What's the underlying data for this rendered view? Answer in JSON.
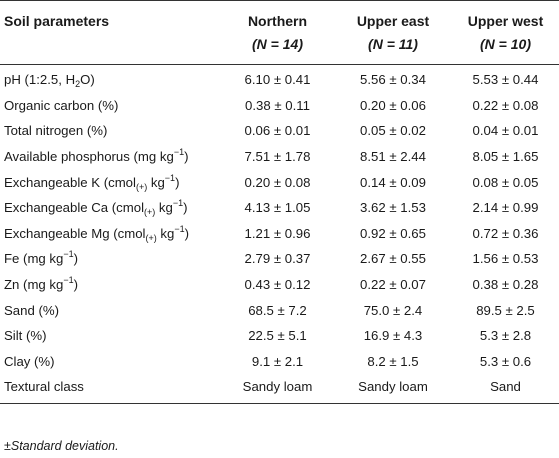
{
  "table": {
    "headers": {
      "param": "Soil parameters",
      "northern": "Northern",
      "northern_n": "(N = 14)",
      "upper_east": "Upper east",
      "upper_east_n": "(N = 11)",
      "upper_west": "Upper west",
      "upper_west_n": "(N = 10)"
    },
    "rows": [
      {
        "param_pre": "pH (1:2.5, H",
        "param_sub": "2",
        "param_post": "O)",
        "northern": "6.10 ± 0.41",
        "upper_east": "5.56 ± 0.34",
        "upper_west": "5.53 ± 0.44"
      },
      {
        "param_pre": "Organic carbon (%)",
        "northern": "0.38 ± 0.11",
        "upper_east": "0.20 ± 0.06",
        "upper_west": "0.22 ± 0.08"
      },
      {
        "param_pre": "Total nitrogen (%)",
        "northern": "0.06 ± 0.01",
        "upper_east": "0.05 ± 0.02",
        "upper_west": "0.04 ± 0.01"
      },
      {
        "param_pre": "Available phosphorus (mg kg",
        "param_sup": "−1",
        "param_post": ")",
        "northern": "7.51 ± 1.78",
        "upper_east": "8.51 ± 2.44",
        "upper_west": "8.05 ± 1.65"
      },
      {
        "param_pre": "Exchangeable K (cmol",
        "param_sub": "(+)",
        "param_mid": " kg",
        "param_sup": "−1",
        "param_post": ")",
        "northern": "0.20 ± 0.08",
        "upper_east": "0.14 ± 0.09",
        "upper_west": "0.08 ± 0.05"
      },
      {
        "param_pre": "Exchangeable Ca (cmol",
        "param_sub": "(+)",
        "param_mid": " kg",
        "param_sup": "−1",
        "param_post": ")",
        "northern": "4.13 ± 1.05",
        "upper_east": "3.62 ± 1.53",
        "upper_west": "2.14 ± 0.99"
      },
      {
        "param_pre": "Exchangeable Mg (cmol",
        "param_sub": "(+)",
        "param_mid": " kg",
        "param_sup": "−1",
        "param_post": ")",
        "northern": "1.21 ± 0.96",
        "upper_east": "0.92 ± 0.65",
        "upper_west": "0.72 ± 0.36"
      },
      {
        "param_pre": "Fe (mg kg",
        "param_sup": "−1",
        "param_post": ")",
        "northern": "2.79 ± 0.37",
        "upper_east": "2.67 ± 0.55",
        "upper_west": "1.56 ± 0.53"
      },
      {
        "param_pre": "Zn (mg kg",
        "param_sup": "−1",
        "param_post": ")",
        "northern": "0.43 ± 0.12",
        "upper_east": "0.22 ± 0.07",
        "upper_west": "0.38 ± 0.28"
      },
      {
        "param_pre": "Sand (%)",
        "northern": "68.5 ± 7.2",
        "upper_east": "75.0 ± 2.4",
        "upper_west": "89.5 ± 2.5"
      },
      {
        "param_pre": "Silt (%)",
        "northern": "22.5 ± 5.1",
        "upper_east": "16.9 ± 4.3",
        "upper_west": "5.3 ± 2.8"
      },
      {
        "param_pre": "Clay (%)",
        "northern": "9.1 ± 2.1",
        "upper_east": "8.2 ± 1.5",
        "upper_west": "5.3 ± 0.6"
      },
      {
        "param_pre": "Textural class",
        "northern": "Sandy loam",
        "upper_east": "Sandy loam",
        "upper_west": "Sand"
      }
    ]
  },
  "footnote": "±Standard deviation."
}
